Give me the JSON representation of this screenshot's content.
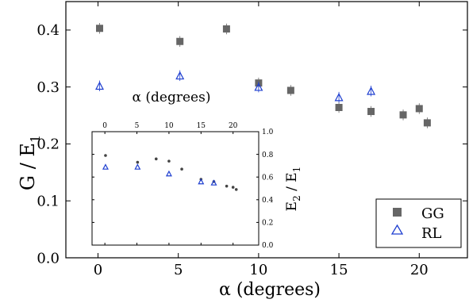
{
  "chart_data": [
    {
      "type": "scatter",
      "xlabel": "α (degrees)",
      "ylabel": "G / E",
      "ylabel_sub": "1",
      "xlim": [
        -2,
        23
      ],
      "ylim": [
        0,
        0.45
      ],
      "xticks": [
        0,
        5,
        10,
        15,
        20
      ],
      "yticks": [
        0.0,
        0.1,
        0.2,
        0.3,
        0.4
      ],
      "xtick_labels": [
        "0",
        "5",
        "10",
        "15",
        "20"
      ],
      "ytick_labels": [
        "0.0",
        "0.1",
        "0.2",
        "0.3",
        "0.4"
      ],
      "legend_position": "bottom-right",
      "series": [
        {
          "name": "GG",
          "marker": "square",
          "color": "#666666",
          "x": [
            0.1,
            5.1,
            8.0,
            10.0,
            12.0,
            15.0,
            17.0,
            19.0,
            20.0,
            20.5
          ],
          "y": [
            0.403,
            0.38,
            0.402,
            0.307,
            0.294,
            0.264,
            0.257,
            0.251,
            0.262,
            0.237
          ]
        },
        {
          "name": "RL",
          "marker": "triangle",
          "color": "#1f3fd0",
          "x": [
            0.1,
            5.1,
            10.0,
            15.0,
            17.0
          ],
          "y": [
            0.302,
            0.32,
            0.3,
            0.282,
            0.293
          ]
        }
      ]
    },
    {
      "type": "scatter",
      "xlabel": "α (degrees)",
      "ylabel": "E",
      "ylabel_sub_1": "2",
      "ylabel_mid": " / E",
      "ylabel_sub_2": "1",
      "xlim": [
        -2,
        24
      ],
      "ylim": [
        0,
        1.0
      ],
      "xticks": [
        0,
        5,
        10,
        15,
        20
      ],
      "xtick_labels": [
        "0",
        "5",
        "10",
        "15",
        "20"
      ],
      "yticks": [
        0.0,
        0.2,
        0.4,
        0.6,
        0.8,
        1.0
      ],
      "ytick_labels": [
        "0.0",
        "0.2",
        "0.4",
        "0.6",
        "0.8",
        "1.0"
      ],
      "series": [
        {
          "marker": "dot",
          "color": "#444444",
          "x": [
            0.1,
            5.1,
            8.0,
            10.0,
            12.0,
            15.0,
            17.0,
            19.0,
            20.0,
            20.5
          ],
          "y": [
            0.79,
            0.73,
            0.76,
            0.74,
            0.67,
            0.58,
            0.56,
            0.52,
            0.51,
            0.49
          ]
        },
        {
          "marker": "triangle",
          "color": "#1f3fd0",
          "x": [
            0.1,
            5.1,
            10.0,
            15.0,
            17.0
          ],
          "y": [
            0.69,
            0.69,
            0.63,
            0.56,
            0.55
          ]
        }
      ]
    }
  ]
}
